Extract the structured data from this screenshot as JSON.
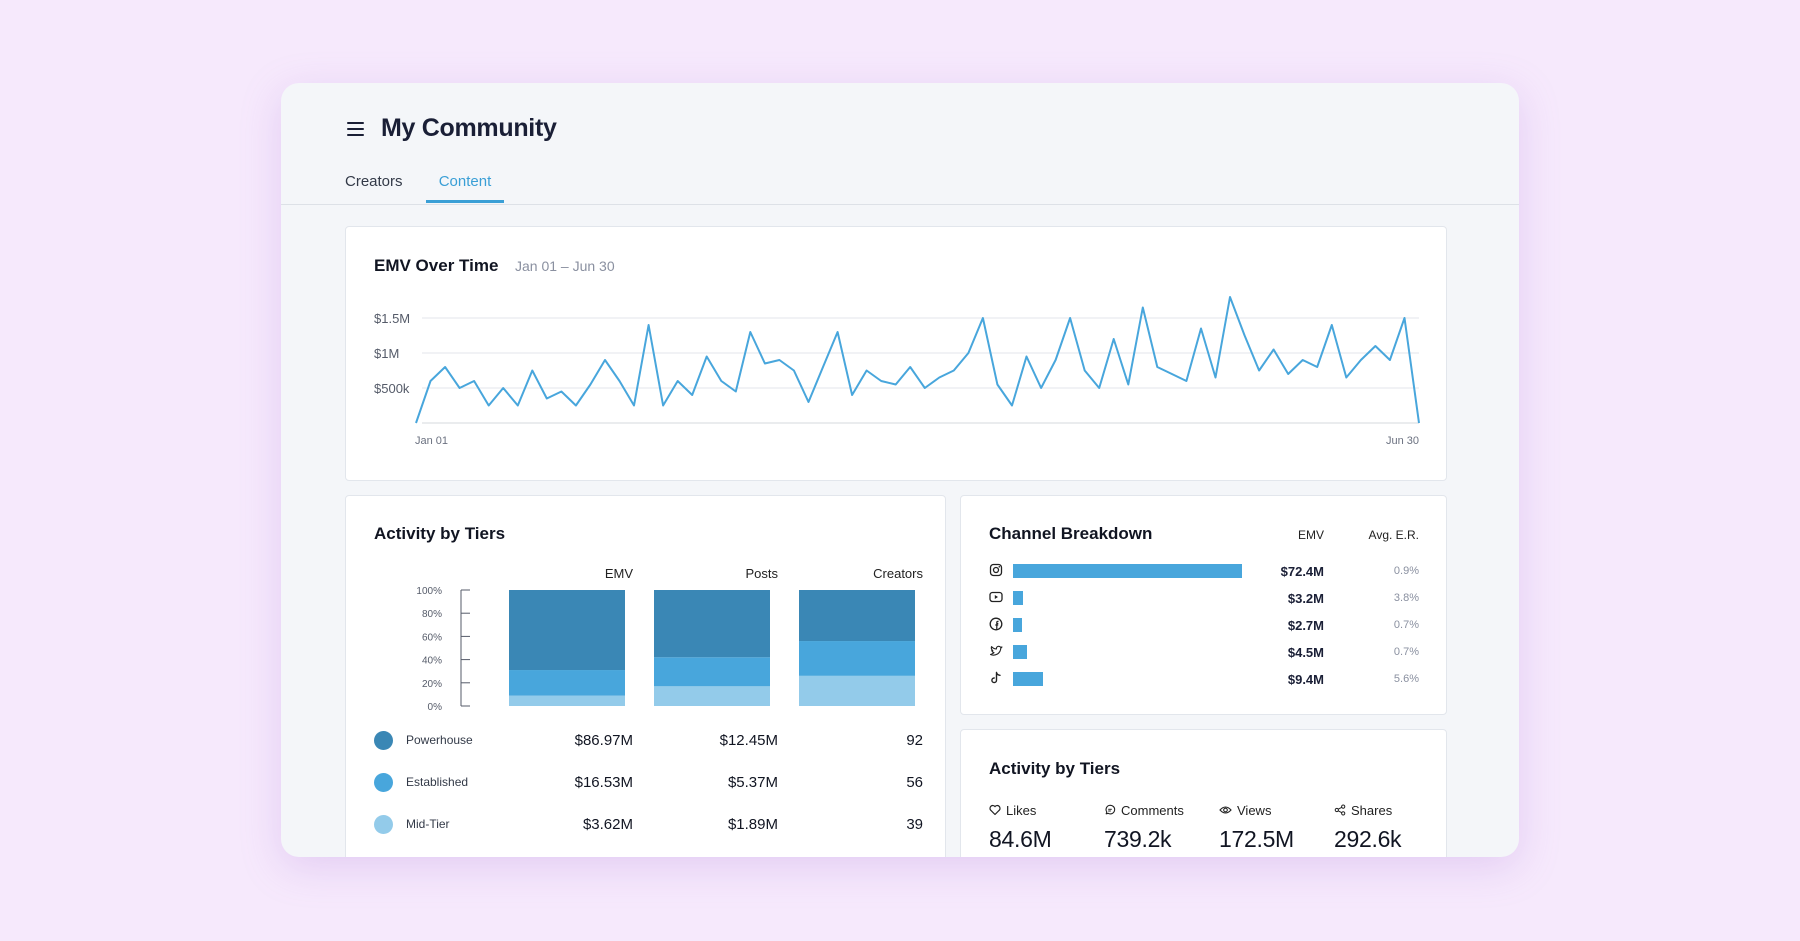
{
  "header": {
    "title": "My Community"
  },
  "tabs": [
    {
      "label": "Creators",
      "active": false
    },
    {
      "label": "Content",
      "active": true
    }
  ],
  "emv_over_time": {
    "title": "EMV Over Time",
    "range": "Jan 01 – Jun 30",
    "y_ticks": [
      "$1.5M",
      "$1M",
      "$500k"
    ],
    "x_start": "Jan 01",
    "x_end": "Jun 30",
    "color": "#48a6dc"
  },
  "activity_by_tiers": {
    "title": "Activity by Tiers",
    "columns": [
      "EMV",
      "Posts",
      "Creators"
    ],
    "y_ticks": [
      "100%",
      "80%",
      "60%",
      "40%",
      "20%",
      "0%"
    ],
    "tiers": [
      {
        "name": "Powerhouse",
        "color": "#3a87b5",
        "emv": "$86.97M",
        "posts": "$12.45M",
        "creators": "92"
      },
      {
        "name": "Established",
        "color": "#48a6dc",
        "emv": "$16.53M",
        "posts": "$5.37M",
        "creators": "56"
      },
      {
        "name": "Mid-Tier",
        "color": "#93cbea",
        "emv": "$3.62M",
        "posts": "$1.89M",
        "creators": "39"
      }
    ]
  },
  "channel_breakdown": {
    "title": "Channel Breakdown",
    "col_emv": "EMV",
    "col_er": "Avg. E.R.",
    "channels": [
      {
        "icon": "instagram-icon",
        "emv": "$72.4M",
        "emv_value": 72.4,
        "er": "0.9%"
      },
      {
        "icon": "youtube-icon",
        "emv": "$3.2M",
        "emv_value": 3.2,
        "er": "3.8%"
      },
      {
        "icon": "facebook-icon",
        "emv": "$2.7M",
        "emv_value": 2.7,
        "er": "0.7%"
      },
      {
        "icon": "twitter-icon",
        "emv": "$4.5M",
        "emv_value": 4.5,
        "er": "0.7%"
      },
      {
        "icon": "tiktok-icon",
        "emv": "$9.4M",
        "emv_value": 9.4,
        "er": "5.6%"
      }
    ]
  },
  "engagement": {
    "title": "Activity by Tiers",
    "metrics": [
      {
        "icon": "heart-icon",
        "label": "Likes",
        "value": "84.6M"
      },
      {
        "icon": "comment-icon",
        "label": "Comments",
        "value": "739.2k"
      },
      {
        "icon": "eye-icon",
        "label": "Views",
        "value": "172.5M"
      },
      {
        "icon": "share-icon",
        "label": "Shares",
        "value": "292.6k"
      }
    ]
  },
  "chart_data": [
    {
      "type": "line",
      "title": "EMV Over Time",
      "subtitle": "Jan 01 – Jun 30",
      "xlabel": "",
      "ylabel": "",
      "x_start": "Jan 01",
      "x_end": "Jun 30",
      "ylim": [
        0,
        1500000
      ],
      "y_tick_labels": [
        "$500k",
        "$1M",
        "$1.5M"
      ],
      "grid": true,
      "series": [
        {
          "values": [
            0,
            600000,
            800000,
            500000,
            600000,
            250000,
            500000,
            250000,
            750000,
            350000,
            450000,
            250000,
            550000,
            900000,
            600000,
            250000,
            1400000,
            250000,
            600000,
            400000,
            950000,
            600000,
            450000,
            1300000,
            850000,
            900000,
            750000,
            300000,
            800000,
            1300000,
            400000,
            750000,
            600000,
            550000,
            800000,
            500000,
            650000,
            750000,
            1000000,
            1500000,
            550000,
            250000,
            950000,
            500000,
            900000,
            1500000,
            750000,
            500000,
            1200000,
            550000,
            1650000,
            800000,
            700000,
            600000,
            1350000,
            650000,
            1800000,
            1250000,
            750000,
            1050000,
            700000,
            900000,
            800000,
            1400000,
            650000,
            900000,
            1100000,
            900000,
            1500000,
            0
          ]
        }
      ]
    },
    {
      "type": "bar",
      "title": "Activity by Tiers",
      "stacked": true,
      "categories": [
        "EMV",
        "Posts",
        "Creators"
      ],
      "ylim": [
        0,
        100
      ],
      "y_tick_labels": [
        "0%",
        "20%",
        "40%",
        "60%",
        "80%",
        "100%"
      ],
      "series": [
        {
          "name": "Mid-Tier",
          "values": [
            9,
            17,
            26
          ]
        },
        {
          "name": "Established",
          "values": [
            22,
            25,
            30
          ]
        },
        {
          "name": "Powerhouse",
          "values": [
            69,
            58,
            44
          ]
        }
      ]
    },
    {
      "type": "bar",
      "title": "Channel Breakdown",
      "orientation": "horizontal",
      "categories": [
        "instagram",
        "youtube",
        "facebook",
        "twitter",
        "tiktok"
      ],
      "values": [
        72.4,
        3.2,
        2.7,
        4.5,
        9.4
      ],
      "value_labels": [
        "$72.4M",
        "$3.2M",
        "$2.7M",
        "$4.5M",
        "$9.4M"
      ]
    }
  ]
}
